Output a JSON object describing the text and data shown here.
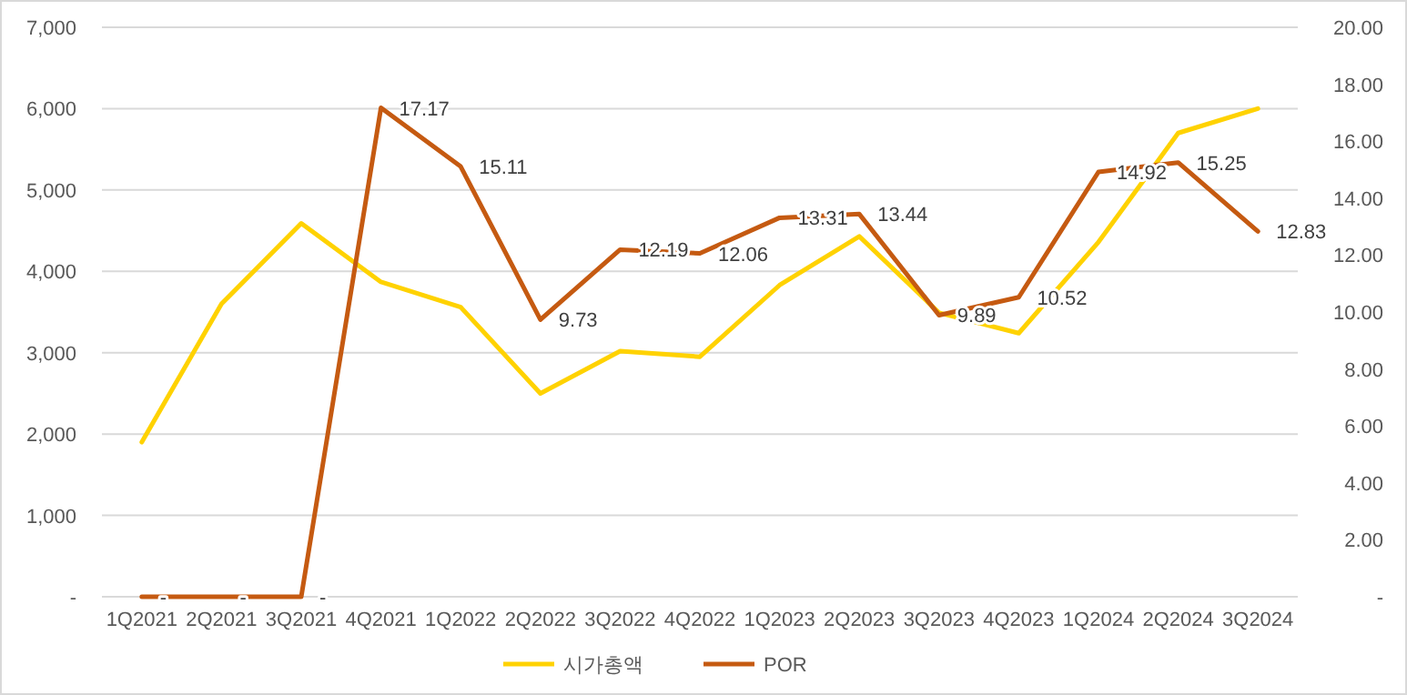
{
  "chart_data": {
    "type": "line",
    "categories": [
      "1Q2021",
      "2Q2021",
      "3Q2021",
      "4Q2021",
      "1Q2022",
      "2Q2022",
      "3Q2022",
      "4Q2022",
      "1Q2023",
      "2Q2023",
      "3Q2023",
      "4Q2023",
      "1Q2024",
      "2Q2024",
      "3Q2024"
    ],
    "series": [
      {
        "name": "시가총액",
        "color": "#ffd200",
        "values": [
          1900,
          3600,
          4590,
          3870,
          3560,
          2500,
          3020,
          2950,
          3830,
          4430,
          3490,
          3240,
          4360,
          5700,
          6000
        ]
      },
      {
        "name": "POR",
        "color": "#c55a11",
        "axis": "y2",
        "values": [
          0,
          0,
          0,
          17.17,
          15.11,
          9.73,
          12.19,
          12.06,
          13.31,
          13.44,
          9.89,
          10.52,
          14.92,
          15.25,
          12.83
        ],
        "value_labels": [
          "-",
          "-",
          "-",
          "17.17",
          "15.11",
          "9.73",
          "12.19",
          "12.06",
          "13.31",
          "13.44",
          "9.89",
          "10.52",
          "14.92",
          "15.25",
          "12.83"
        ]
      }
    ],
    "ylim": [
      0,
      7000
    ],
    "yticks": [
      {
        "value": 0,
        "label": "-"
      },
      {
        "value": 1000,
        "label": "1,000"
      },
      {
        "value": 2000,
        "label": "2,000"
      },
      {
        "value": 3000,
        "label": "3,000"
      },
      {
        "value": 4000,
        "label": "4,000"
      },
      {
        "value": 5000,
        "label": "5,000"
      },
      {
        "value": 6000,
        "label": "6,000"
      },
      {
        "value": 7000,
        "label": "7,000"
      }
    ],
    "y2lim": [
      0,
      20
    ],
    "y2ticks": [
      {
        "value": 0,
        "label": "-"
      },
      {
        "value": 2,
        "label": "2.00"
      },
      {
        "value": 4,
        "label": "4.00"
      },
      {
        "value": 6,
        "label": "6.00"
      },
      {
        "value": 8,
        "label": "8.00"
      },
      {
        "value": 10,
        "label": "10.00"
      },
      {
        "value": 12,
        "label": "12.00"
      },
      {
        "value": 14,
        "label": "14.00"
      },
      {
        "value": 16,
        "label": "16.00"
      },
      {
        "value": 18,
        "label": "18.00"
      },
      {
        "value": 20,
        "label": "20.00"
      }
    ],
    "grid": "y",
    "legend": "bottom",
    "marker": "none",
    "line_style": "solid"
  }
}
